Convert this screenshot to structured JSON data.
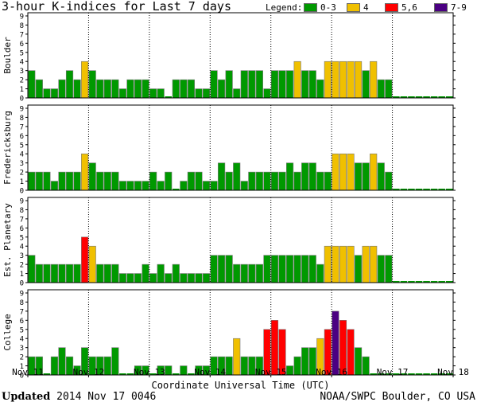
{
  "title": "3-hour K-indices for Last 7 days",
  "legend": {
    "label": "Legend:",
    "items": [
      {
        "text": "0-3",
        "color": "#009900"
      },
      {
        "text": "4",
        "color": "#f0c000"
      },
      {
        "text": "5,6",
        "color": "#ff0000"
      },
      {
        "text": "7-9",
        "color": "#4b0082"
      }
    ]
  },
  "footer": {
    "updated_label": "Updated",
    "updated_value": "2014 Nov 17 0046",
    "credit": "NOAA/SWPC Boulder, CO USA"
  },
  "chart_data": {
    "type": "bar",
    "title": "3-hour K-indices for Last 7 days",
    "xlabel": "Coordinate Universal Time (UTC)",
    "x_tick_labels": [
      "Nov 11",
      "Nov 12",
      "Nov 13",
      "Nov 14",
      "Nov 15",
      "Nov 16",
      "Nov 17",
      "Nov 18"
    ],
    "y_tick_labels": [
      "0",
      "1",
      "2",
      "3",
      "4",
      "5",
      "6",
      "7",
      "8",
      "9"
    ],
    "ylim": [
      0,
      9
    ],
    "bars_per_day": 8,
    "color_bins": [
      {
        "range": "0-3",
        "color": "#009900"
      },
      {
        "range": "4",
        "color": "#f0c000"
      },
      {
        "range": "5,6",
        "color": "#ff0000"
      },
      {
        "range": "7-9",
        "color": "#4b0082"
      }
    ],
    "panels": [
      {
        "name": "Boulder",
        "values": [
          3,
          2,
          1,
          1,
          2,
          3,
          2,
          4,
          3,
          2,
          2,
          2,
          1,
          2,
          2,
          2,
          1,
          1,
          0,
          2,
          2,
          2,
          1,
          1,
          3,
          2,
          3,
          1,
          3,
          3,
          3,
          1,
          3,
          3,
          3,
          4,
          3,
          3,
          2,
          4,
          4,
          4,
          4,
          4,
          3,
          4,
          2,
          2,
          0,
          0,
          0,
          0,
          0,
          0,
          0,
          0
        ]
      },
      {
        "name": "Fredericksburg",
        "values": [
          2,
          2,
          2,
          1,
          2,
          2,
          2,
          4,
          3,
          2,
          2,
          2,
          1,
          1,
          1,
          1,
          2,
          1,
          2,
          0,
          1,
          2,
          2,
          1,
          1,
          3,
          2,
          3,
          1,
          2,
          2,
          2,
          2,
          2,
          3,
          2,
          3,
          3,
          2,
          2,
          4,
          4,
          4,
          3,
          3,
          4,
          3,
          2,
          0,
          0,
          0,
          0,
          0,
          0,
          0,
          0
        ]
      },
      {
        "name": "Est. Planetary",
        "values": [
          3,
          2,
          2,
          2,
          2,
          2,
          2,
          5,
          4,
          2,
          2,
          2,
          1,
          1,
          1,
          2,
          1,
          2,
          1,
          2,
          1,
          1,
          1,
          1,
          3,
          3,
          3,
          2,
          2,
          2,
          2,
          3,
          3,
          3,
          3,
          3,
          3,
          3,
          2,
          4,
          4,
          4,
          4,
          3,
          4,
          4,
          3,
          3,
          0,
          0,
          0,
          0,
          0,
          0,
          0,
          0
        ]
      },
      {
        "name": "College",
        "values": [
          2,
          2,
          0,
          2,
          3,
          2,
          1,
          3,
          2,
          2,
          2,
          3,
          0,
          0,
          1,
          1,
          0,
          1,
          1,
          0,
          1,
          0,
          1,
          1,
          2,
          2,
          2,
          4,
          2,
          2,
          2,
          5,
          6,
          5,
          1,
          2,
          3,
          3,
          4,
          5,
          7,
          6,
          5,
          3,
          2,
          0,
          0,
          0,
          0,
          0,
          0,
          0,
          0,
          0,
          0,
          0
        ]
      }
    ]
  }
}
